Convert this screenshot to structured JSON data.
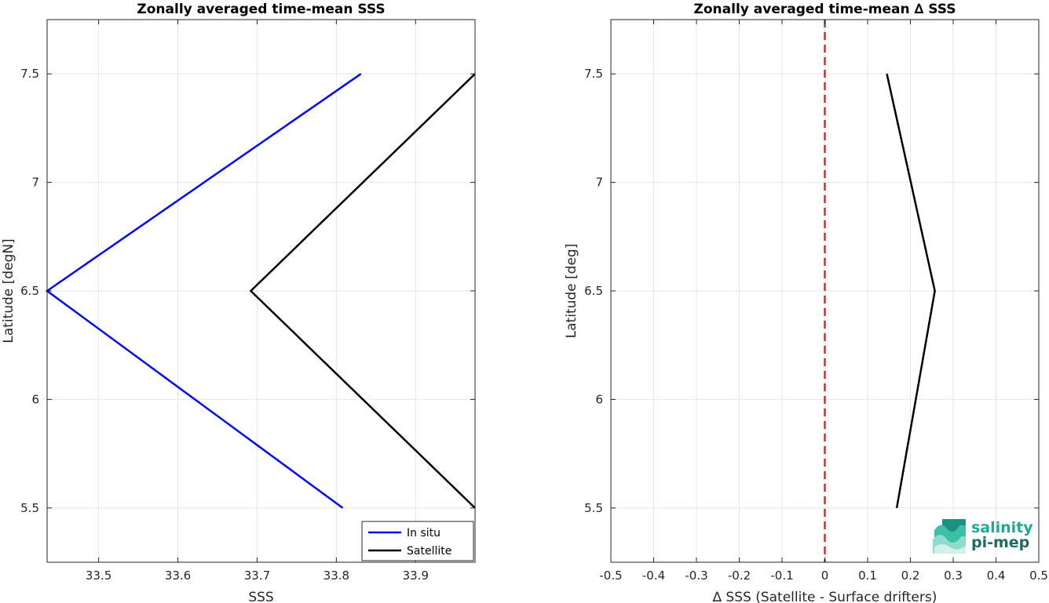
{
  "chart_data": [
    {
      "type": "line",
      "title": "Zonally averaged time-mean SSS",
      "xlabel": "SSS",
      "ylabel": "Latitude [degN]",
      "xlim": [
        33.435,
        33.975
      ],
      "ylim": [
        5.25,
        7.75
      ],
      "xticks": [
        33.5,
        33.6,
        33.7,
        33.8,
        33.9
      ],
      "xtick_labels": [
        "33.5",
        "33.6",
        "33.7",
        "33.8",
        "33.9"
      ],
      "yticks": [
        5.5,
        6,
        6.5,
        7,
        7.5
      ],
      "ytick_labels": [
        "5.5",
        "6",
        "6.5",
        "7",
        "7.5"
      ],
      "grid": true,
      "legend_position": "bottom-right",
      "series": [
        {
          "name": "In situ",
          "color": "#0000ff",
          "x": [
            33.808,
            33.435,
            33.831
          ],
          "y": [
            5.5,
            6.5,
            7.5
          ]
        },
        {
          "name": "Satellite",
          "color": "#000000",
          "x": [
            33.975,
            33.692,
            33.975
          ],
          "y": [
            5.5,
            6.5,
            7.5
          ]
        }
      ]
    },
    {
      "type": "line",
      "title": "Zonally averaged time-mean ∆ SSS",
      "xlabel": "∆ SSS (Satellite - Surface drifters)",
      "ylabel": "Latitude [deg]",
      "xlim": [
        -0.5,
        0.5
      ],
      "ylim": [
        5.25,
        7.75
      ],
      "xticks": [
        -0.5,
        -0.4,
        -0.3,
        -0.2,
        -0.1,
        0,
        0.1,
        0.2,
        0.3,
        0.4,
        0.5
      ],
      "xtick_labels": [
        "-0.5",
        "-0.4",
        "-0.3",
        "-0.2",
        "-0.1",
        "0",
        "0.1",
        "0.2",
        "0.3",
        "0.4",
        "0.5"
      ],
      "yticks": [
        5.5,
        6,
        6.5,
        7,
        7.5
      ],
      "ytick_labels": [
        "5.5",
        "6",
        "6.5",
        "7",
        "7.5"
      ],
      "grid": true,
      "reference_line": {
        "x": 0,
        "color": "#e8231f",
        "style": "dashed"
      },
      "series": [
        {
          "color": "#000000",
          "x": [
            0.168,
            0.257,
            0.145
          ],
          "y": [
            5.5,
            6.5,
            7.5
          ]
        }
      ]
    }
  ],
  "logo": {
    "line1": "salinity",
    "line2": "pi-mep",
    "color_light": "#1fa894",
    "color_dark": "#1e6d62"
  }
}
